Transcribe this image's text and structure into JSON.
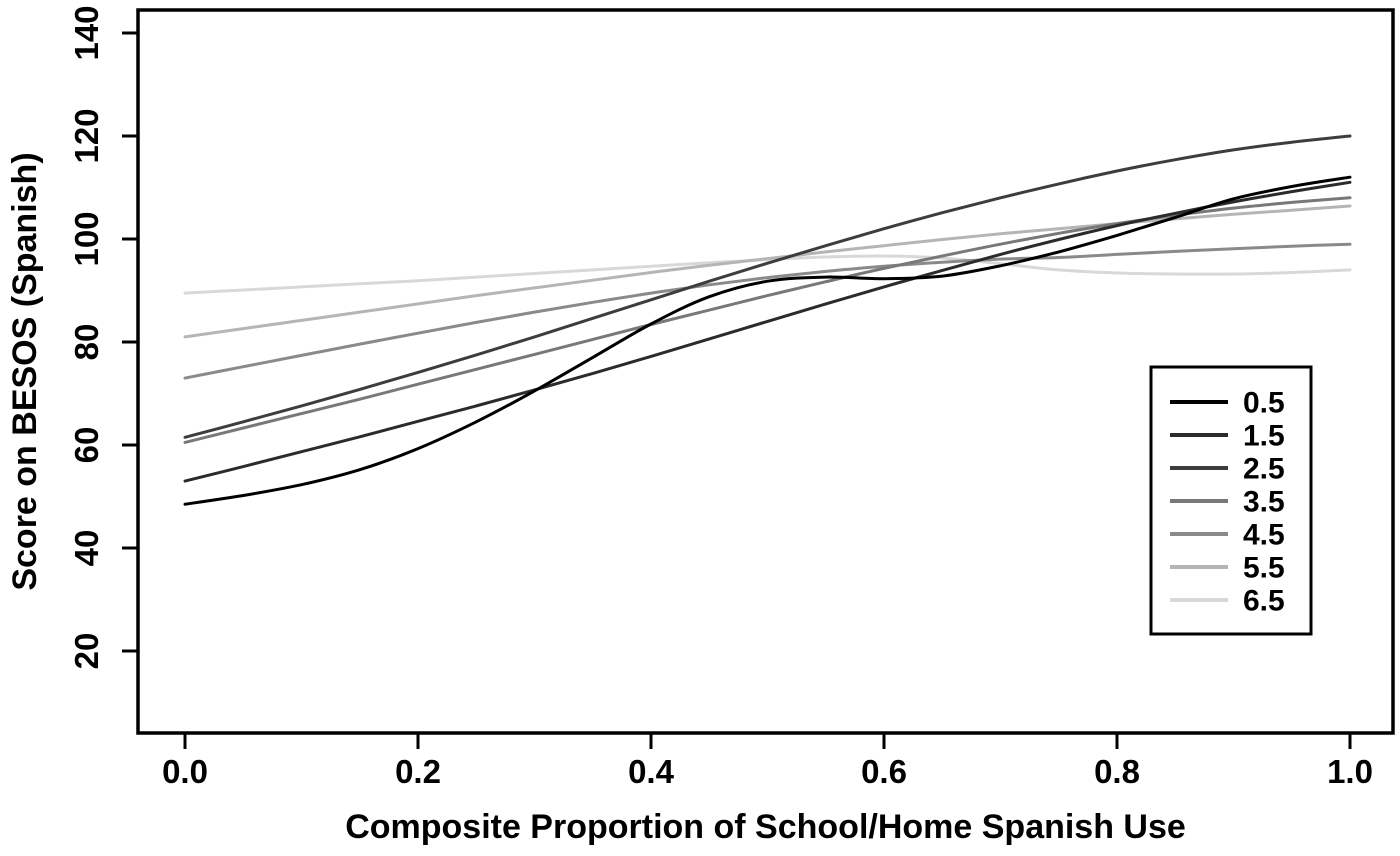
{
  "figure": {
    "xlabel": "Composite Proportion of School/Home Spanish Use",
    "ylabel": "Score on BESOS (Spanish)"
  },
  "chart_data": {
    "type": "line",
    "title": "",
    "xlabel": "Composite Proportion of School/Home Spanish Use",
    "ylabel": "Score on BESOS (Spanish)",
    "grid": false,
    "xlim": [
      -0.04,
      1.037
    ],
    "ylim": [
      4.1,
      144.5
    ],
    "x_tick_values": [
      0.0,
      0.2,
      0.4,
      0.6,
      0.8,
      1.0
    ],
    "x_tick_labels": [
      "0.0",
      "0.2",
      "0.4",
      "0.6",
      "0.8",
      "1.0"
    ],
    "y_tick_values": [
      20,
      40,
      60,
      80,
      100,
      120,
      140
    ],
    "y_tick_labels": [
      "20",
      "40",
      "60",
      "80",
      "100",
      "120",
      "140"
    ],
    "x": [
      0,
      0.05,
      0.1,
      0.15,
      0.2,
      0.25,
      0.3,
      0.35,
      0.4,
      0.45,
      0.5,
      0.55,
      0.6,
      0.65,
      0.7,
      0.75,
      0.8,
      0.85,
      0.9,
      0.95,
      1.0
    ],
    "series": [
      {
        "name": "0.5",
        "color": "#000000",
        "values": [
          48.5,
          50.2,
          52.3,
          55.2,
          59.3,
          64.5,
          70.5,
          77,
          83.5,
          88.8,
          91.8,
          92.6,
          92.3,
          92.8,
          94.8,
          97.5,
          100.7,
          104.2,
          107.8,
          110.2,
          112
        ]
      },
      {
        "name": "1.5",
        "color": "#2b2b2b",
        "values": [
          53,
          55.8,
          58.7,
          61.6,
          64.6,
          67.6,
          70.7,
          73.9,
          77.2,
          80.6,
          84,
          87.4,
          90.7,
          93.9,
          97,
          99.9,
          102.6,
          105,
          107.2,
          109.2,
          111
        ]
      },
      {
        "name": "2.5",
        "color": "#3d3d3d",
        "values": [
          61.5,
          64.5,
          67.6,
          70.8,
          74.1,
          77.5,
          81,
          84.6,
          88.2,
          91.8,
          95.3,
          98.7,
          102,
          105.1,
          108,
          110.7,
          113.2,
          115.4,
          117.3,
          118.8,
          120
        ]
      },
      {
        "name": "3.5",
        "color": "#787878",
        "values": [
          60.5,
          63.3,
          66.1,
          68.9,
          71.8,
          74.7,
          77.6,
          80.5,
          83.4,
          86.2,
          89,
          91.7,
          94.3,
          96.7,
          99,
          101.1,
          103,
          104.6,
          106,
          107.1,
          108
        ]
      },
      {
        "name": "4.5",
        "color": "#8a8a8a",
        "values": [
          73,
          75.2,
          77.4,
          79.6,
          81.7,
          83.8,
          85.8,
          87.7,
          89.5,
          91.1,
          92.5,
          93.7,
          94.7,
          95.5,
          96.1,
          96.4,
          97,
          97.6,
          98.1,
          98.6,
          99
        ]
      },
      {
        "name": "5.5",
        "color": "#b5b5b5",
        "values": [
          81,
          82.6,
          84.2,
          85.8,
          87.4,
          89,
          90.5,
          92,
          93.5,
          94.9,
          96.2,
          97.5,
          98.7,
          99.9,
          101,
          102,
          103,
          103.9,
          104.8,
          105.6,
          106.4
        ]
      },
      {
        "name": "6.5",
        "color": "#d8d8d8",
        "values": [
          89.5,
          90.1,
          90.7,
          91.3,
          91.9,
          92.6,
          93.3,
          94,
          94.7,
          95.4,
          96,
          96.5,
          96.7,
          96.3,
          95.2,
          94,
          93.4,
          93.2,
          93.2,
          93.5,
          94
        ]
      }
    ],
    "legend": {
      "position": "inside-right",
      "entries": [
        "0.5",
        "1.5",
        "2.5",
        "3.5",
        "4.5",
        "5.5",
        "6.5"
      ]
    }
  }
}
